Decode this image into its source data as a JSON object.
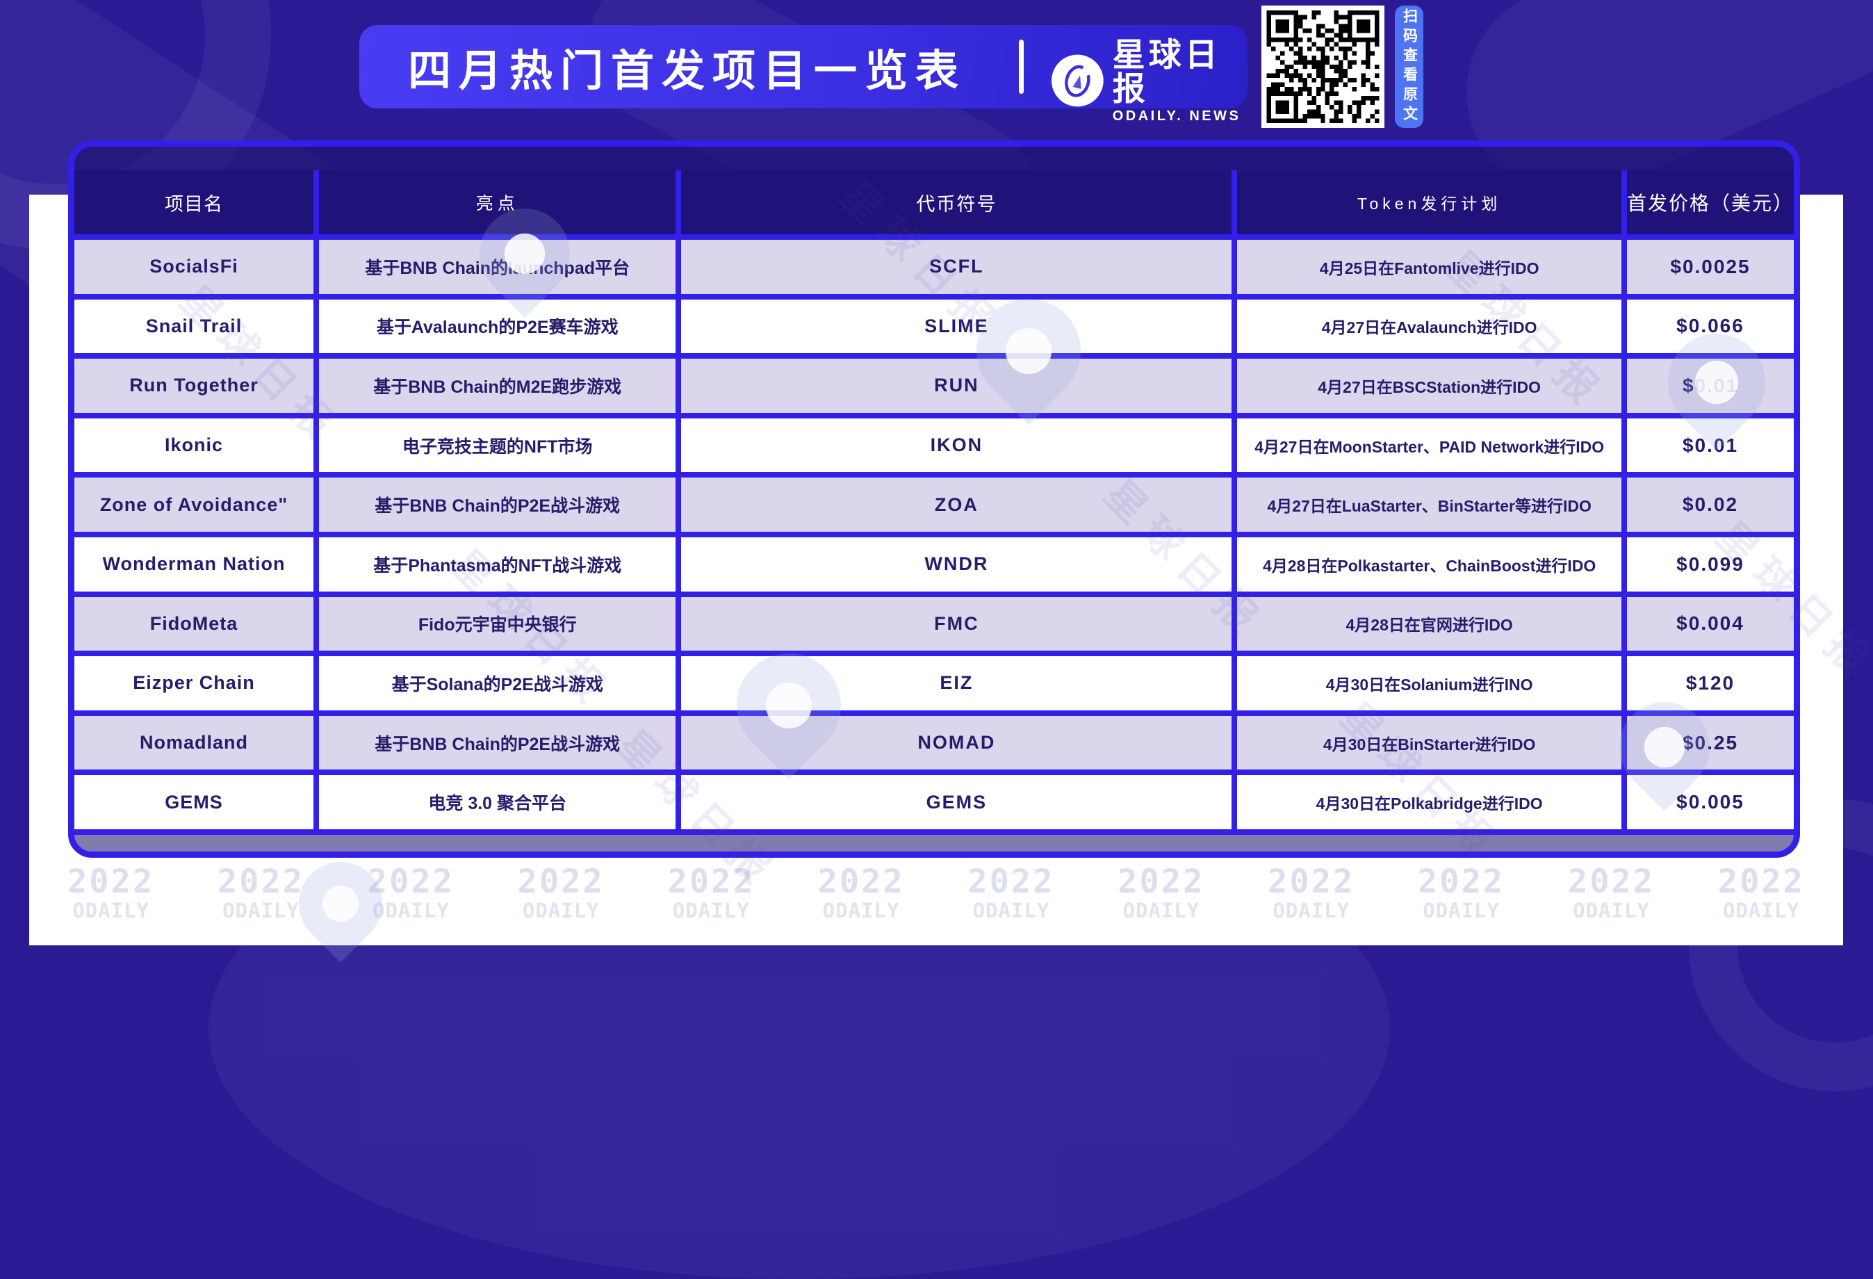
{
  "banner": {
    "title": "四月热门首发项目一览表",
    "brand": "星球日报",
    "brand_sub": "ODAILY. NEWS",
    "qr_label": "扫码查看原文"
  },
  "table": {
    "columns": [
      "项目名",
      "亮点",
      "代币符号",
      "Token发行计划",
      "首发价格（美元）"
    ],
    "rows": [
      {
        "name": "SocialsFi",
        "highlight": "基于BNB Chain的launchpad平台",
        "symbol": "SCFL",
        "plan": "4月25日在Fantomlive进行IDO",
        "price": "$0.0025"
      },
      {
        "name": "Snail Trail",
        "highlight": "基于Avalaunch的P2E赛车游戏",
        "symbol": "SLIME",
        "plan": "4月27日在Avalaunch进行IDO",
        "price": "$0.066"
      },
      {
        "name": "Run Together",
        "highlight": "基于BNB Chain的M2E跑步游戏",
        "symbol": "RUN",
        "plan": "4月27日在BSCStation进行IDO",
        "price": "$0.01"
      },
      {
        "name": "Ikonic",
        "highlight": "电子竞技主题的NFT市场",
        "symbol": "IKON",
        "plan": "4月27日在MoonStarter、PAID Network进行IDO",
        "price": "$0.01"
      },
      {
        "name": "Zone of Avoidance\"",
        "highlight": "基于BNB Chain的P2E战斗游戏",
        "symbol": "ZOA",
        "plan": "4月27日在LuaStarter、BinStarter等进行IDO",
        "price": "$0.02"
      },
      {
        "name": "Wonderman Nation",
        "highlight": "基于Phantasma的NFT战斗游戏",
        "symbol": "WNDR",
        "plan": "4月28日在Polkastarter、ChainBoost进行IDO",
        "price": "$0.099"
      },
      {
        "name": "FidoMeta",
        "highlight": "Fido元宇宙中央银行",
        "symbol": "FMC",
        "plan": "4月28日在官网进行IDO",
        "price": "$0.004"
      },
      {
        "name": "Eizper Chain",
        "highlight": "基于Solana的P2E战斗游戏",
        "symbol": "EIZ",
        "plan": "4月30日在Solanium进行INO",
        "price": "$120"
      },
      {
        "name": "Nomadland",
        "highlight": "基于BNB Chain的P2E战斗游戏",
        "symbol": "NOMAD",
        "plan": "4月30日在BinStarter进行IDO",
        "price": "$0.25"
      },
      {
        "name": "GEMS",
        "highlight": "电竞 3.0 聚合平台",
        "symbol": "GEMS",
        "plan": "4月30日在Polkabridge进行IDO",
        "price": "$0.005"
      }
    ]
  },
  "watermarks": {
    "year": "2022",
    "brand": "ODAILY",
    "count": 12,
    "diagonal_text": "星球日报"
  },
  "colors": {
    "background": "#2a1b95",
    "accent_border": "#3220e8",
    "header_bg": "#1f1278",
    "row_alt": "#dbd6ec",
    "text_dark": "#241d6b",
    "banner_from": "#483df2",
    "banner_to": "#2b20c8",
    "qr_pill_blue": "#4e74f3"
  }
}
